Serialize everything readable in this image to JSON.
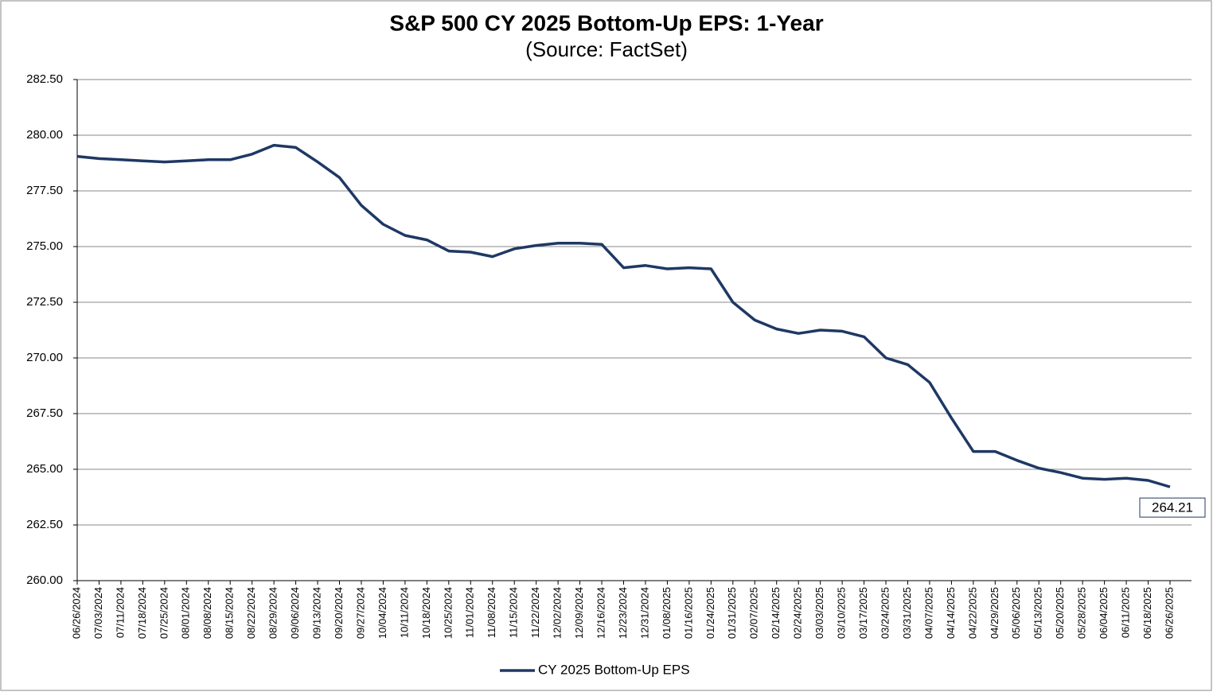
{
  "chart_data": {
    "type": "line",
    "title": "S&P 500 CY 2025 Bottom-Up  EPS: 1-Year",
    "subtitle": "(Source: FactSet)",
    "categories": [
      "06/26/2024",
      "07/03/2024",
      "07/11/2024",
      "07/18/2024",
      "07/25/2024",
      "08/01/2024",
      "08/08/2024",
      "08/15/2024",
      "08/22/2024",
      "08/29/2024",
      "09/06/2024",
      "09/13/2024",
      "09/20/2024",
      "09/27/2024",
      "10/04/2024",
      "10/11/2024",
      "10/18/2024",
      "10/25/2024",
      "11/01/2024",
      "11/08/2024",
      "11/15/2024",
      "11/22/2024",
      "12/02/2024",
      "12/09/2024",
      "12/16/2024",
      "12/23/2024",
      "12/31/2024",
      "01/08/2025",
      "01/16/2025",
      "01/24/2025",
      "01/31/2025",
      "02/07/2025",
      "02/14/2025",
      "02/24/2025",
      "03/03/2025",
      "03/10/2025",
      "03/17/2025",
      "03/24/2025",
      "03/31/2025",
      "04/07/2025",
      "04/14/2025",
      "04/22/2025",
      "04/29/2025",
      "05/06/2025",
      "05/13/2025",
      "05/20/2025",
      "05/28/2025",
      "06/04/2025",
      "06/11/2025",
      "06/18/2025",
      "06/26/2025"
    ],
    "series": [
      {
        "name": "CY 2025 Bottom-Up EPS",
        "color": "#1f3864",
        "values": [
          279.05,
          278.95,
          278.9,
          278.85,
          278.8,
          278.85,
          278.9,
          278.9,
          279.15,
          279.55,
          279.45,
          278.8,
          278.1,
          276.85,
          276.0,
          275.5,
          275.3,
          274.8,
          274.75,
          274.55,
          274.9,
          275.05,
          275.15,
          275.15,
          275.1,
          274.05,
          274.15,
          274.0,
          274.05,
          274.0,
          272.5,
          271.7,
          271.3,
          271.1,
          271.25,
          271.2,
          270.95,
          270.0,
          269.7,
          268.9,
          267.3,
          265.8,
          265.8,
          265.4,
          265.05,
          264.85,
          264.6,
          264.55,
          264.6,
          264.5,
          264.21
        ],
        "value_labels": {
          "50": "264.21"
        }
      }
    ],
    "ylim": [
      260,
      282.5
    ],
    "yticks": [
      {
        "value": 260,
        "label": "260.00"
      },
      {
        "value": 262.5,
        "label": "262.50"
      },
      {
        "value": 265,
        "label": "265.00"
      },
      {
        "value": 267.5,
        "label": "267.50"
      },
      {
        "value": 270,
        "label": "270.00"
      },
      {
        "value": 272.5,
        "label": "272.50"
      },
      {
        "value": 275,
        "label": "275.00"
      },
      {
        "value": 277.5,
        "label": "277.50"
      },
      {
        "value": 280,
        "label": "280.00"
      },
      {
        "value": 282.5,
        "label": "282.50"
      }
    ],
    "grid": true,
    "legend": "bottom"
  }
}
